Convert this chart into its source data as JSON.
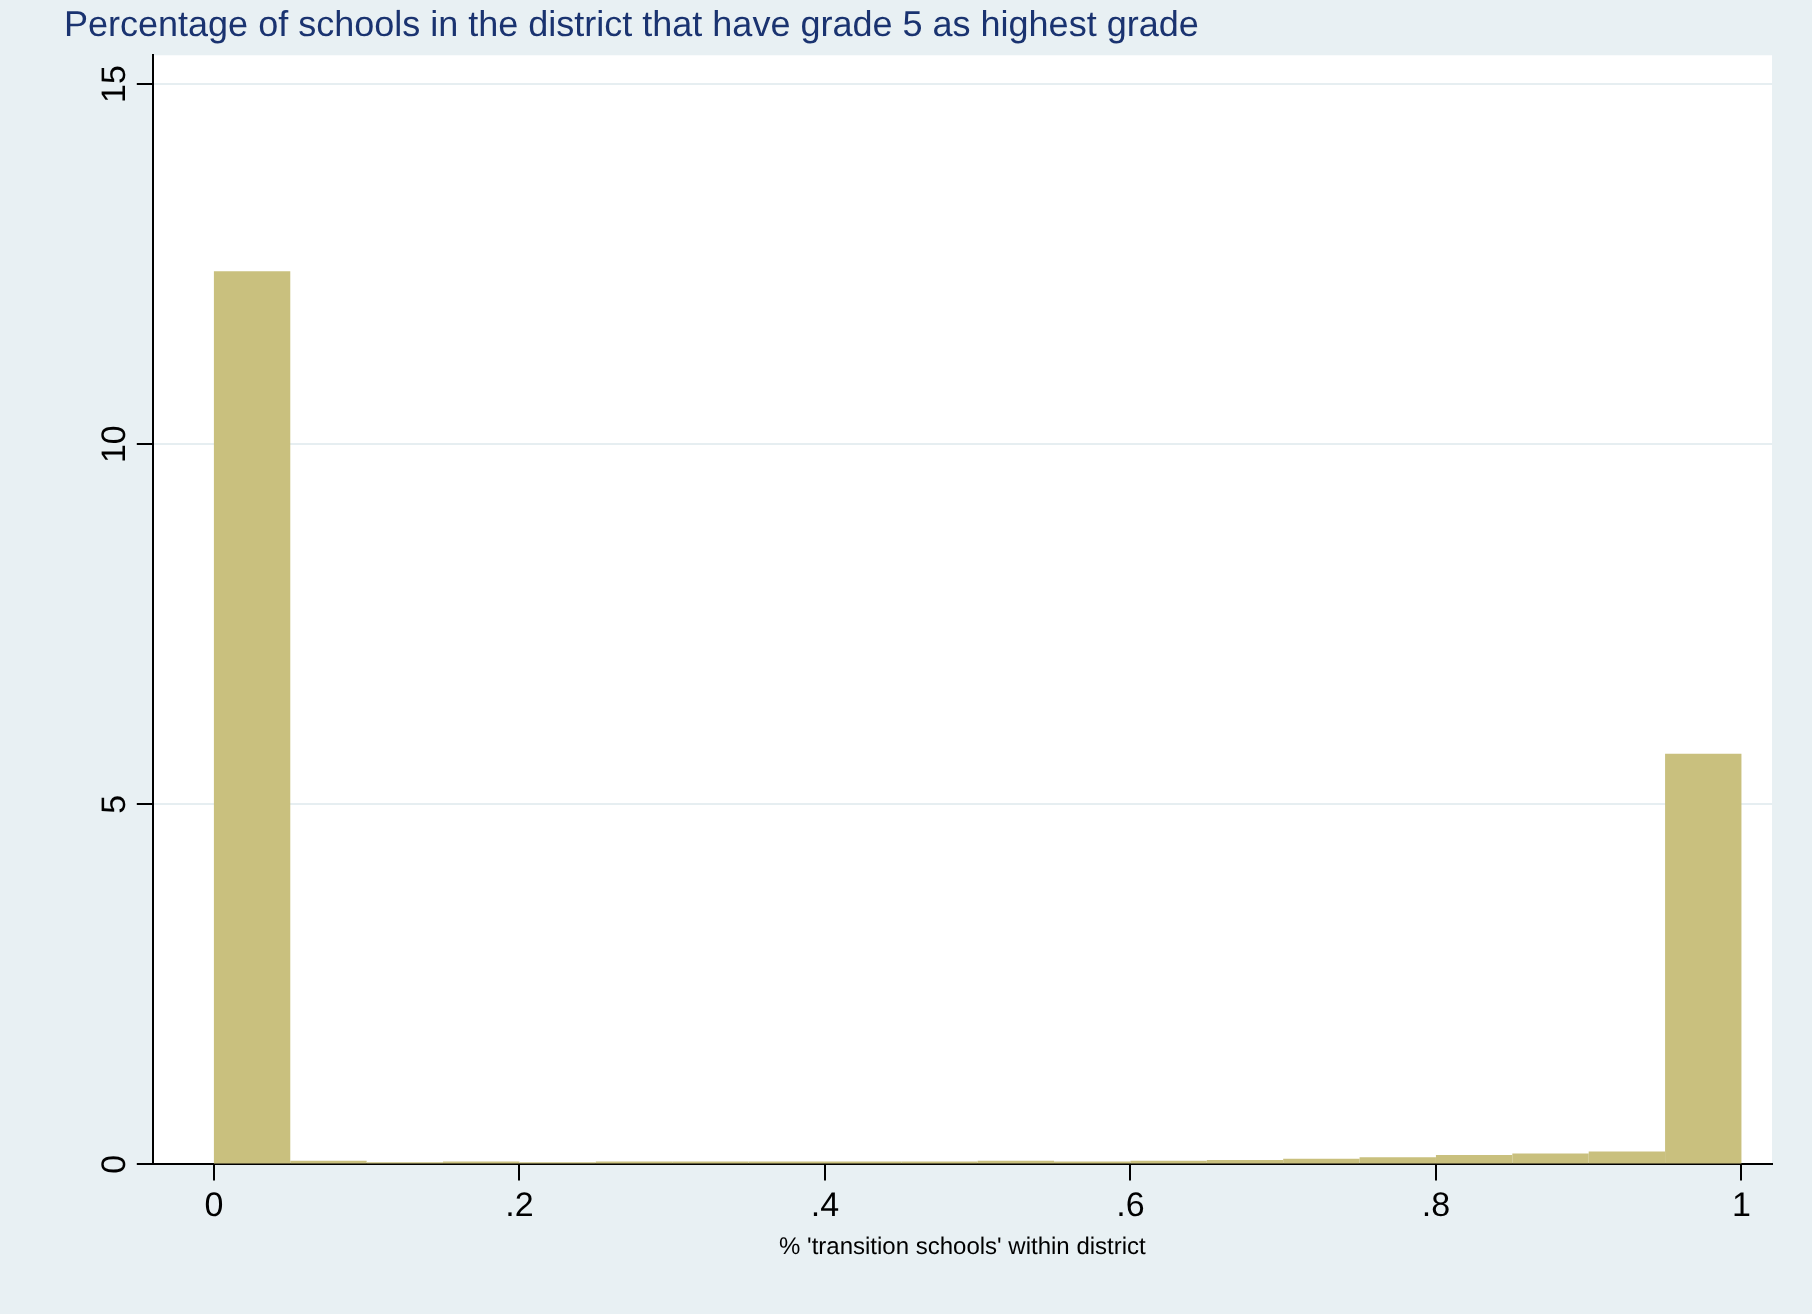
{
  "chart_data": {
    "type": "histogram",
    "title": "Percentage of schools in the district that have grade 5 as highest grade",
    "xlabel": "% 'transition schools' within district",
    "bins": [
      0,
      0.05,
      0.1,
      0.15,
      0.2,
      0.25,
      0.3,
      0.35,
      0.4,
      0.45,
      0.5,
      0.55,
      0.6,
      0.65,
      0.7,
      0.75,
      0.8,
      0.85,
      0.9,
      0.95,
      1
    ],
    "values": [
      12.4,
      0.05,
      0.03,
      0.04,
      0.03,
      0.04,
      0.04,
      0.04,
      0.04,
      0.04,
      0.05,
      0.04,
      0.05,
      0.06,
      0.08,
      0.1,
      0.13,
      0.15,
      0.18,
      5.7
    ],
    "color": "#c9c07e",
    "xlim": [
      -0.04,
      1.02
    ],
    "xticks": [
      0,
      {
        "value": 0.2,
        "label": ".2"
      },
      {
        "value": 0.4,
        "label": ".4"
      },
      {
        "value": 0.6,
        "label": ".6"
      },
      {
        "value": 0.8,
        "label": ".8"
      },
      1
    ],
    "ylim": [
      0,
      15.4
    ],
    "yticks": [
      0,
      5,
      10,
      15
    ],
    "grid": "y"
  }
}
